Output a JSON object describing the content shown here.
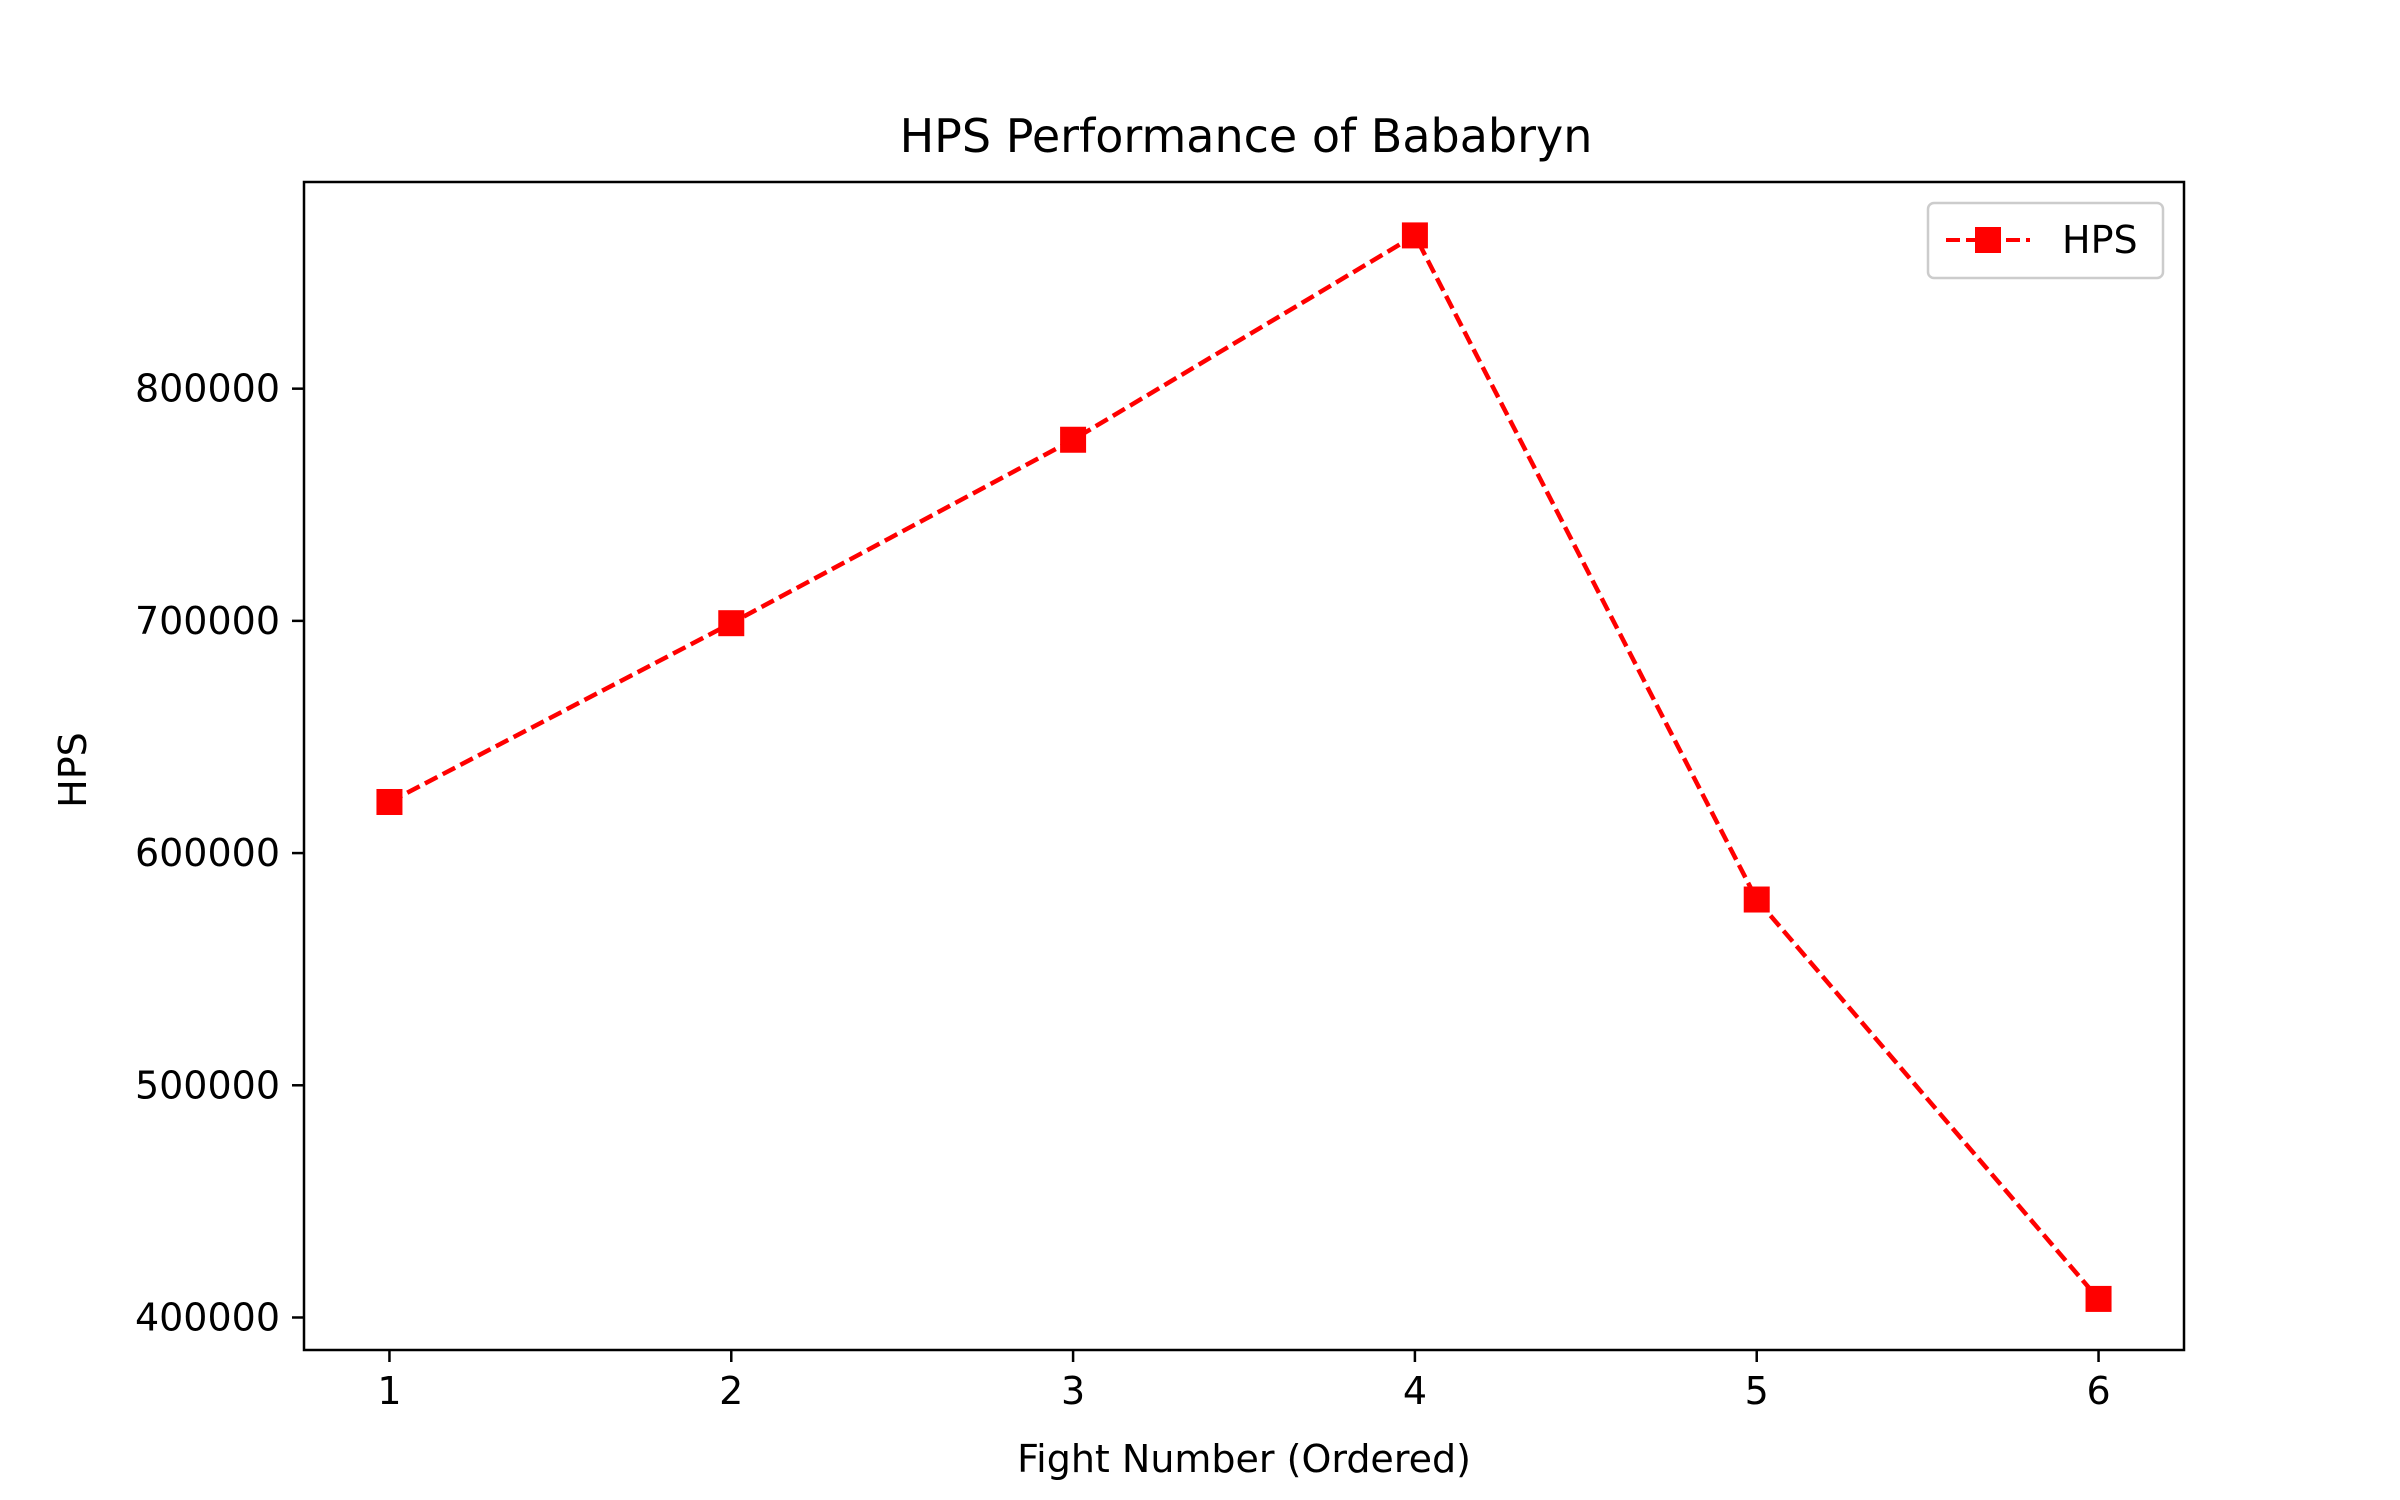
{
  "chart_data": {
    "type": "line",
    "title": "HPS Performance of Bababryn",
    "xlabel": "Fight Number (Ordered)",
    "ylabel": "HPS",
    "x": [
      1,
      2,
      3,
      4,
      5,
      6
    ],
    "x_ticks": [
      "1",
      "2",
      "3",
      "4",
      "5",
      "6"
    ],
    "xlim": [
      0.75,
      6.25
    ],
    "y_ticks": [
      "400000",
      "500000",
      "600000",
      "700000",
      "800000"
    ],
    "y_tick_values": [
      400000,
      500000,
      600000,
      700000,
      800000
    ],
    "ylim": [
      386000,
      889000
    ],
    "grid": false,
    "legend_position": "upper-right",
    "series": [
      {
        "name": "HPS",
        "values": [
          622000,
          699000,
          778000,
          866000,
          580000,
          408000
        ],
        "color": "#ff0000",
        "line_style": "dashed",
        "marker": "square"
      }
    ]
  }
}
